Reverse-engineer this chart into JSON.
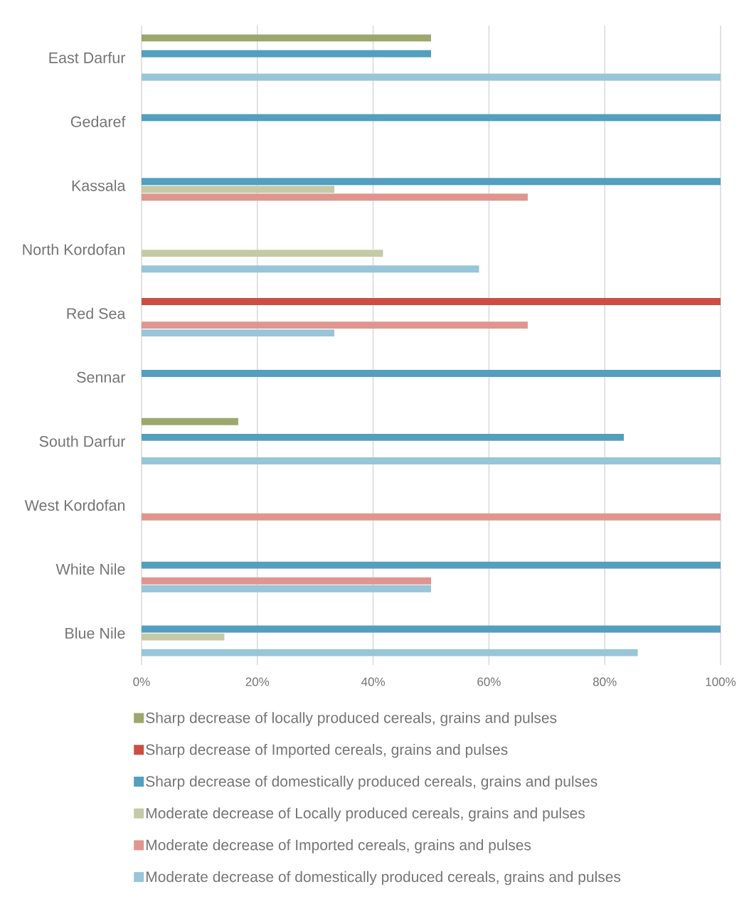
{
  "chart_data": {
    "type": "bar",
    "orientation": "horizontal",
    "categories": [
      "East Darfur",
      "Gedaref",
      "Kassala",
      "North Kordofan",
      "Red Sea",
      "Sennar",
      "South Darfur",
      "West Kordofan",
      "White Nile",
      "Blue Nile"
    ],
    "series": [
      {
        "name": "Sharp decrease of locally produced cereals, grains and pulses",
        "color": "#9ca76b",
        "values": [
          50,
          null,
          null,
          null,
          null,
          null,
          16.7,
          null,
          null,
          null
        ]
      },
      {
        "name": "Sharp decrease of Imported cereals, grains and pulses",
        "color": "#cc4e42",
        "values": [
          null,
          null,
          null,
          null,
          100,
          null,
          null,
          null,
          null,
          null
        ]
      },
      {
        "name": "Sharp decrease of domestically produced cereals, grains and pulses",
        "color": "#529fc0",
        "values": [
          50,
          100,
          100,
          null,
          null,
          100,
          83.3,
          null,
          100,
          100
        ]
      },
      {
        "name": "Moderate decrease of Locally produced cereals, grains and pulses",
        "color": "#c4caa6",
        "values": [
          null,
          null,
          33.3,
          41.7,
          null,
          null,
          null,
          null,
          null,
          14.3
        ]
      },
      {
        "name": "Moderate decrease of Imported cereals, grains and pulses",
        "color": "#e0958e",
        "values": [
          null,
          null,
          66.7,
          null,
          66.7,
          null,
          null,
          100,
          50,
          null
        ]
      },
      {
        "name": "Moderate decrease of domestically produced cereals, grains and pulses",
        "color": "#97c5d9",
        "values": [
          100,
          null,
          null,
          58.3,
          33.3,
          null,
          100,
          null,
          50,
          85.7
        ]
      }
    ],
    "xlim": [
      0,
      100
    ],
    "xticks": [
      {
        "value": 0,
        "label": "0%"
      },
      {
        "value": 20,
        "label": "20%"
      },
      {
        "value": 40,
        "label": "40%"
      },
      {
        "value": 60,
        "label": "60%"
      },
      {
        "value": 80,
        "label": "80%"
      },
      {
        "value": 100,
        "label": "100%"
      }
    ],
    "grid": "x",
    "legend": "bottom"
  }
}
